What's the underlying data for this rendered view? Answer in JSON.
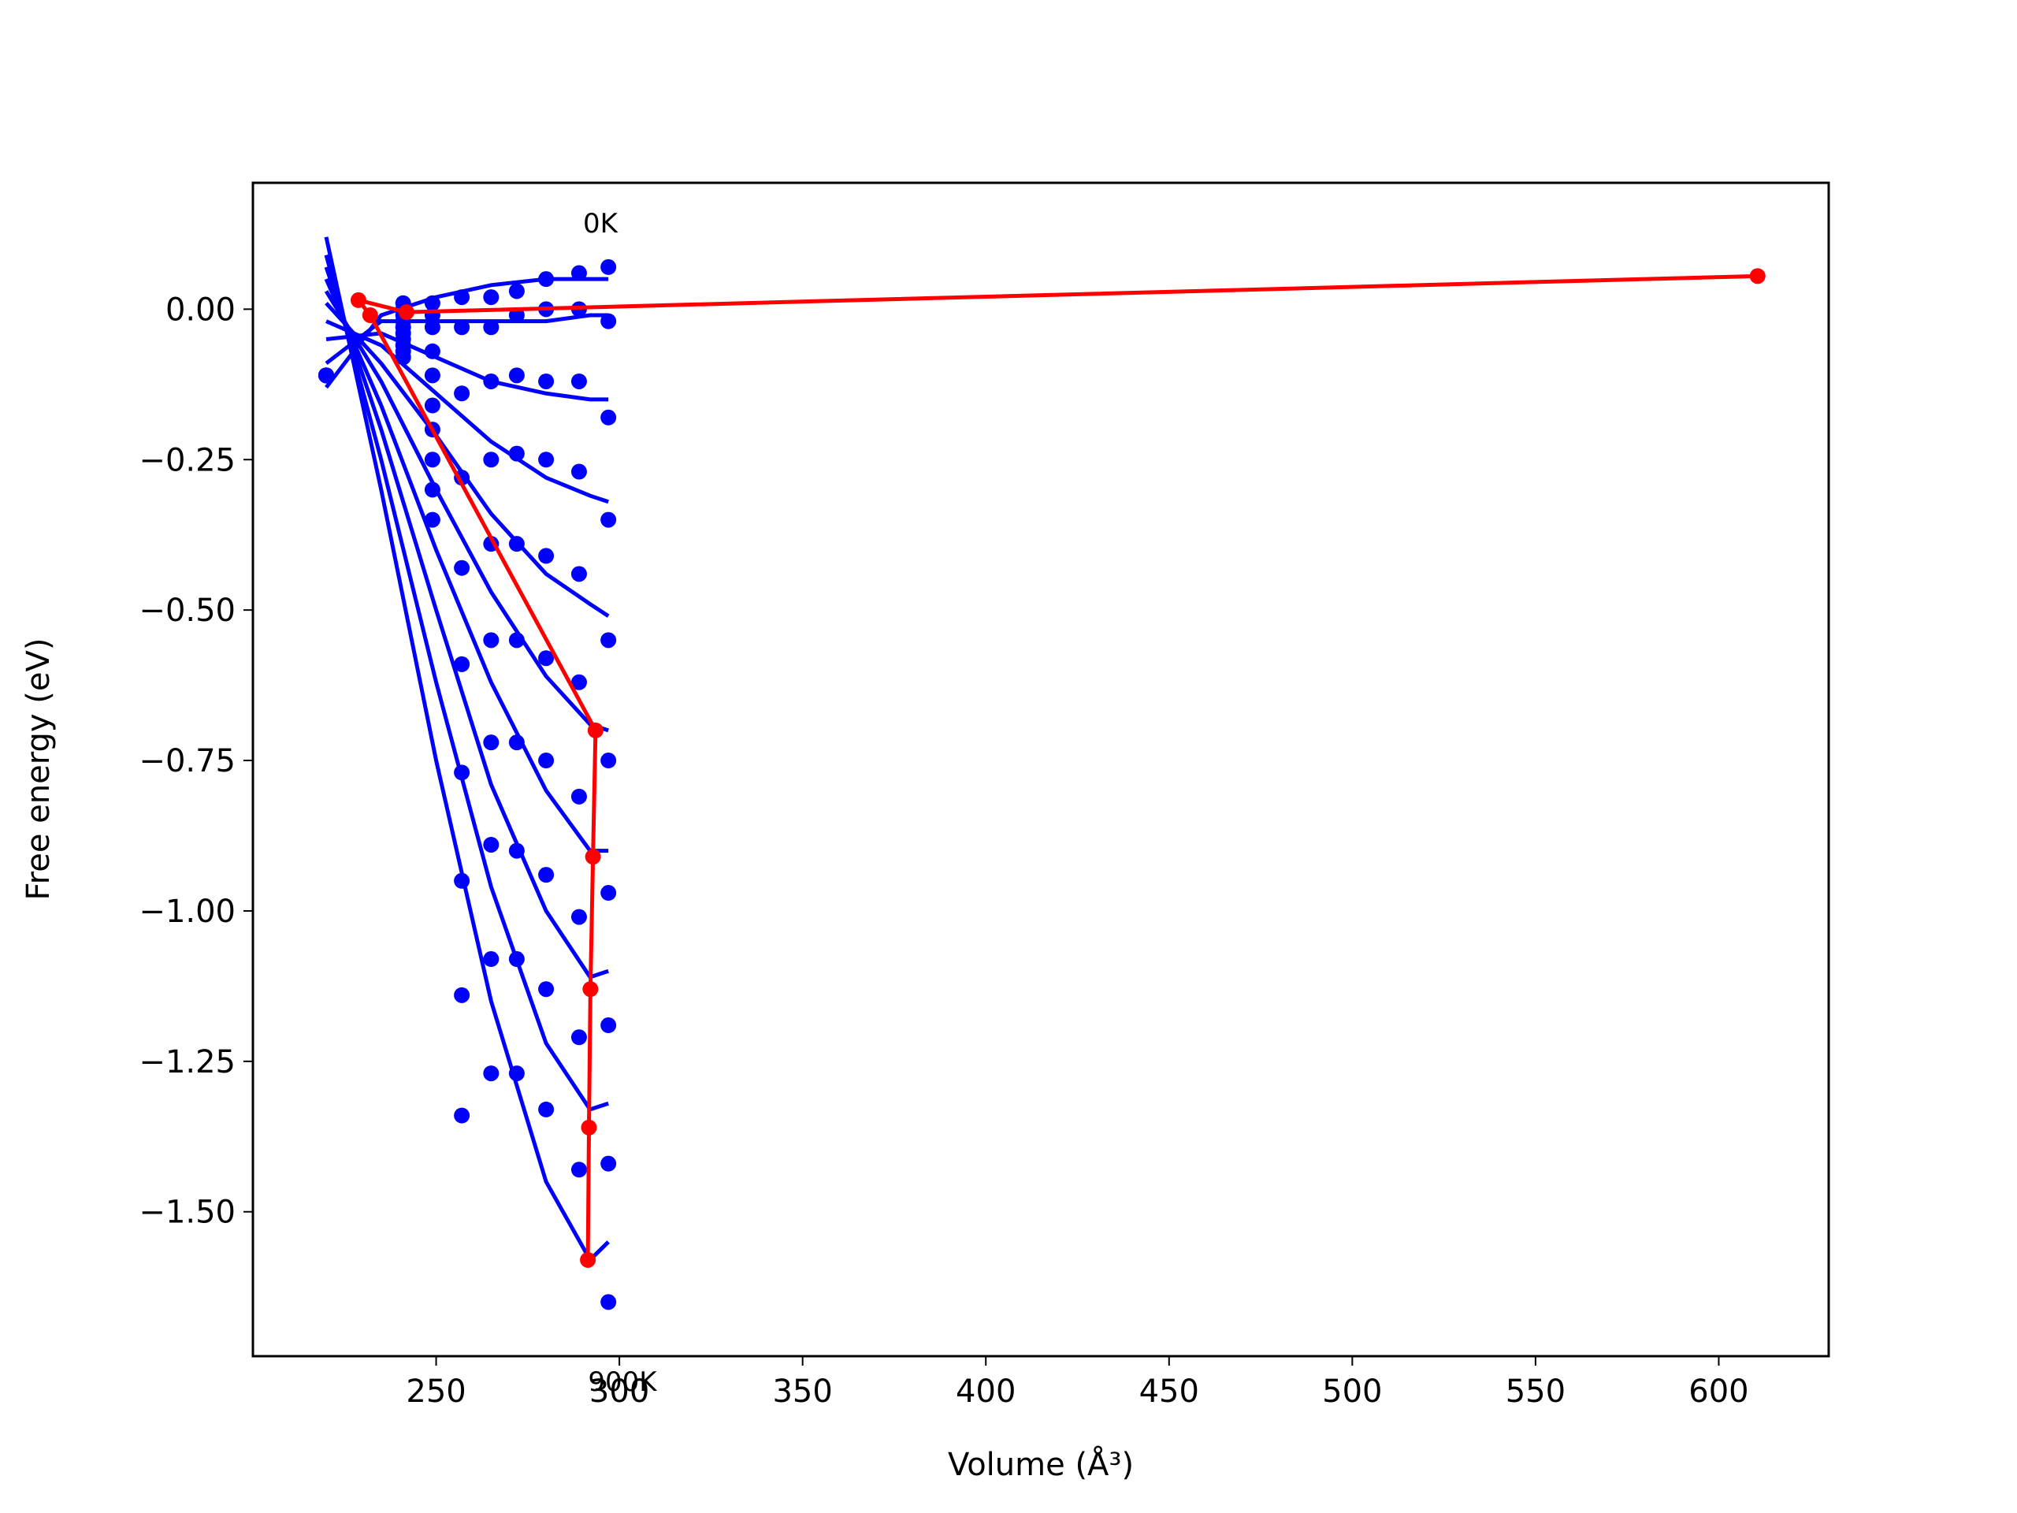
{
  "chart_data": {
    "type": "scatter-fit",
    "xlabel": "Volume (Å³)",
    "ylabel": "Free energy (eV)",
    "xlim": [
      200,
      630
    ],
    "ylim": [
      -1.74,
      0.21
    ],
    "xticks": [
      250,
      300,
      350,
      400,
      450,
      500,
      550,
      600
    ],
    "yticks": [
      {
        "value": 0,
        "label": "0.00"
      },
      {
        "value": -0.25,
        "label": "−0.25"
      },
      {
        "value": -0.5,
        "label": "−0.50"
      },
      {
        "value": -0.75,
        "label": "−0.75"
      },
      {
        "value": -1,
        "label": "−1.00"
      },
      {
        "value": -1.25,
        "label": "−1.25"
      },
      {
        "value": -1.5,
        "label": "−1.50"
      }
    ],
    "annotations": [
      "0K",
      "900K"
    ],
    "dots": {
      "color": "#0000ff",
      "x": [
        220,
        241,
        249,
        257,
        265,
        272,
        280,
        289,
        297
      ],
      "series": [
        {
          "values": [
            -0.11,
            0.01,
            0.01,
            0.02,
            0.02,
            0.03,
            0.05,
            0.06,
            0.07
          ]
        },
        {
          "values": [
            -0.11,
            0.0,
            -0.01,
            -0.03,
            -0.03,
            -0.01,
            0.0,
            0.0,
            -0.02
          ]
        },
        {
          "values": [
            -0.11,
            -0.01,
            -0.03,
            -0.14,
            -0.12,
            -0.11,
            -0.12,
            -0.12,
            -0.18
          ]
        },
        {
          "values": [
            -0.11,
            -0.02,
            -0.07,
            -0.28,
            -0.25,
            -0.24,
            -0.25,
            -0.27,
            -0.35
          ]
        },
        {
          "values": [
            -0.11,
            -0.03,
            -0.11,
            -0.43,
            -0.39,
            -0.39,
            -0.41,
            -0.44,
            -0.55
          ]
        },
        {
          "values": [
            -0.11,
            -0.04,
            -0.16,
            -0.59,
            -0.55,
            -0.55,
            -0.58,
            -0.62,
            -0.75
          ]
        },
        {
          "values": [
            -0.11,
            -0.05,
            -0.2,
            -0.77,
            -0.72,
            -0.72,
            -0.75,
            -0.81,
            -0.97
          ]
        },
        {
          "values": [
            -0.11,
            -0.06,
            -0.25,
            -0.95,
            -0.89,
            -0.9,
            -0.94,
            -1.01,
            -1.19
          ]
        },
        {
          "values": [
            -0.11,
            -0.07,
            -0.3,
            -1.14,
            -1.08,
            -1.08,
            -1.13,
            -1.21,
            -1.42
          ]
        },
        {
          "values": [
            -0.11,
            -0.08,
            -0.35,
            -1.34,
            -1.27,
            -1.27,
            -1.33,
            -1.43,
            -1.65
          ]
        }
      ]
    },
    "fits": {
      "color": "#0000ff",
      "x": [
        220,
        235,
        250,
        265,
        280,
        292,
        297
      ],
      "series": [
        {
          "values": [
            -0.13,
            -0.01,
            0.02,
            0.04,
            0.05,
            0.05,
            0.05
          ]
        },
        {
          "values": [
            -0.09,
            -0.02,
            -0.02,
            -0.02,
            -0.02,
            -0.01,
            -0.01
          ]
        },
        {
          "values": [
            -0.05,
            -0.04,
            -0.08,
            -0.12,
            -0.14,
            -0.15,
            -0.15
          ]
        },
        {
          "values": [
            -0.02,
            -0.06,
            -0.14,
            -0.22,
            -0.28,
            -0.31,
            -0.32
          ]
        },
        {
          "values": [
            0.01,
            -0.09,
            -0.21,
            -0.34,
            -0.44,
            -0.49,
            -0.51
          ]
        },
        {
          "values": [
            0.03,
            -0.12,
            -0.3,
            -0.47,
            -0.61,
            -0.69,
            -0.7
          ]
        },
        {
          "values": [
            0.05,
            -0.16,
            -0.4,
            -0.62,
            -0.8,
            -0.9,
            -0.9
          ]
        },
        {
          "values": [
            0.07,
            -0.2,
            -0.5,
            -0.79,
            -1.0,
            -1.11,
            -1.1
          ]
        },
        {
          "values": [
            0.09,
            -0.25,
            -0.62,
            -0.96,
            -1.22,
            -1.33,
            -1.32
          ]
        },
        {
          "values": [
            0.12,
            -0.3,
            -0.75,
            -1.15,
            -1.45,
            -1.58,
            -1.55
          ]
        }
      ]
    },
    "minima": {
      "color": "#ff0000",
      "x": [
        610.6,
        241.9,
        228.8,
        232,
        293.5,
        292.8,
        292.1,
        291.7,
        291.4
      ],
      "values": [
        0.055,
        -0.005,
        0.015,
        -0.01,
        -0.7,
        -0.91,
        -1.13,
        -1.36,
        -1.58
      ]
    }
  }
}
